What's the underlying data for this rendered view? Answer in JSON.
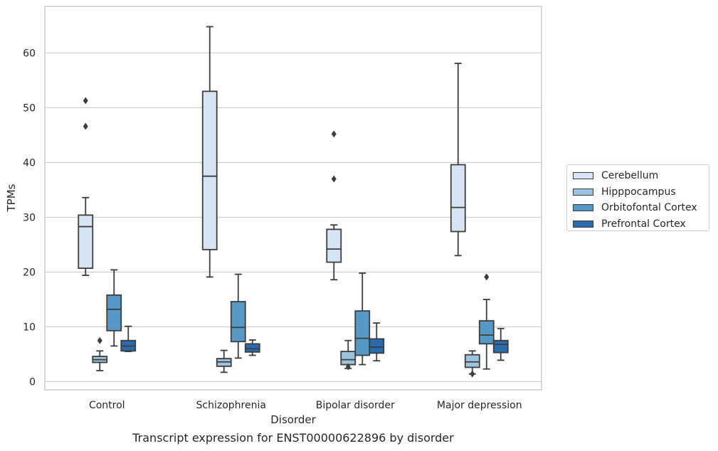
{
  "caption": "Transcript expression for ENST00000622896 by disorder",
  "chart_data": {
    "type": "box",
    "xlabel": "Disorder",
    "ylabel": "TPMs",
    "ylim": [
      -1.5,
      68.5
    ],
    "yticks": [
      0,
      10,
      20,
      30,
      40,
      50,
      60
    ],
    "grid": "horizontal",
    "legend_position": "right",
    "categories": [
      "Control",
      "Schizophrenia",
      "Bipolar disorder",
      "Major depression"
    ],
    "series": [
      {
        "name": "Cerebellum",
        "color": "#d6e4f3",
        "boxes": [
          {
            "whislo": 19.4,
            "q1": 20.7,
            "med": 28.3,
            "q3": 30.4,
            "whishi": 33.6,
            "fliers": [
              46.6,
              51.3
            ]
          },
          {
            "whislo": 19.1,
            "q1": 24.1,
            "med": 37.5,
            "q3": 53.0,
            "whishi": 64.8,
            "fliers": []
          },
          {
            "whislo": 18.6,
            "q1": 21.8,
            "med": 24.2,
            "q3": 27.8,
            "whishi": 28.6,
            "fliers": [
              37.0,
              45.2
            ]
          },
          {
            "whislo": 23.0,
            "q1": 27.4,
            "med": 31.8,
            "q3": 39.6,
            "whishi": 58.1,
            "fliers": []
          }
        ]
      },
      {
        "name": "Hipppocampus",
        "color": "#9cc3e0",
        "boxes": [
          {
            "whislo": 2.0,
            "q1": 3.5,
            "med": 4.0,
            "q3": 4.6,
            "whishi": 5.6,
            "fliers": [
              7.5
            ]
          },
          {
            "whislo": 1.7,
            "q1": 2.8,
            "med": 3.6,
            "q3": 4.2,
            "whishi": 5.7,
            "fliers": []
          },
          {
            "whislo": 2.4,
            "q1": 3.1,
            "med": 4.0,
            "q3": 5.5,
            "whishi": 7.5,
            "fliers": [
              2.7
            ]
          },
          {
            "whislo": 1.4,
            "q1": 2.6,
            "med": 3.6,
            "q3": 4.9,
            "whishi": 5.6,
            "fliers": [
              1.4
            ]
          }
        ]
      },
      {
        "name": "Orbitofontal Cortex",
        "color": "#5698c6",
        "boxes": [
          {
            "whislo": 6.5,
            "q1": 9.3,
            "med": 13.2,
            "q3": 15.8,
            "whishi": 20.4,
            "fliers": []
          },
          {
            "whislo": 4.3,
            "q1": 7.3,
            "med": 9.9,
            "q3": 14.6,
            "whishi": 19.6,
            "fliers": []
          },
          {
            "whislo": 3.1,
            "q1": 4.8,
            "med": 7.9,
            "q3": 12.9,
            "whishi": 19.8,
            "fliers": []
          },
          {
            "whislo": 2.3,
            "q1": 6.9,
            "med": 8.5,
            "q3": 11.1,
            "whishi": 15.0,
            "fliers": [
              19.1
            ]
          }
        ]
      },
      {
        "name": "Prefrontal Cortex",
        "color": "#2a6aad",
        "boxes": [
          {
            "whislo": 5.5,
            "q1": 5.6,
            "med": 6.5,
            "q3": 7.5,
            "whishi": 10.1,
            "fliers": []
          },
          {
            "whislo": 4.8,
            "q1": 5.4,
            "med": 6.0,
            "q3": 6.9,
            "whishi": 7.6,
            "fliers": []
          },
          {
            "whislo": 3.8,
            "q1": 5.2,
            "med": 6.3,
            "q3": 7.8,
            "whishi": 10.7,
            "fliers": []
          },
          {
            "whislo": 3.9,
            "q1": 5.3,
            "med": 6.8,
            "q3": 7.5,
            "whishi": 9.7,
            "fliers": []
          }
        ]
      }
    ]
  }
}
